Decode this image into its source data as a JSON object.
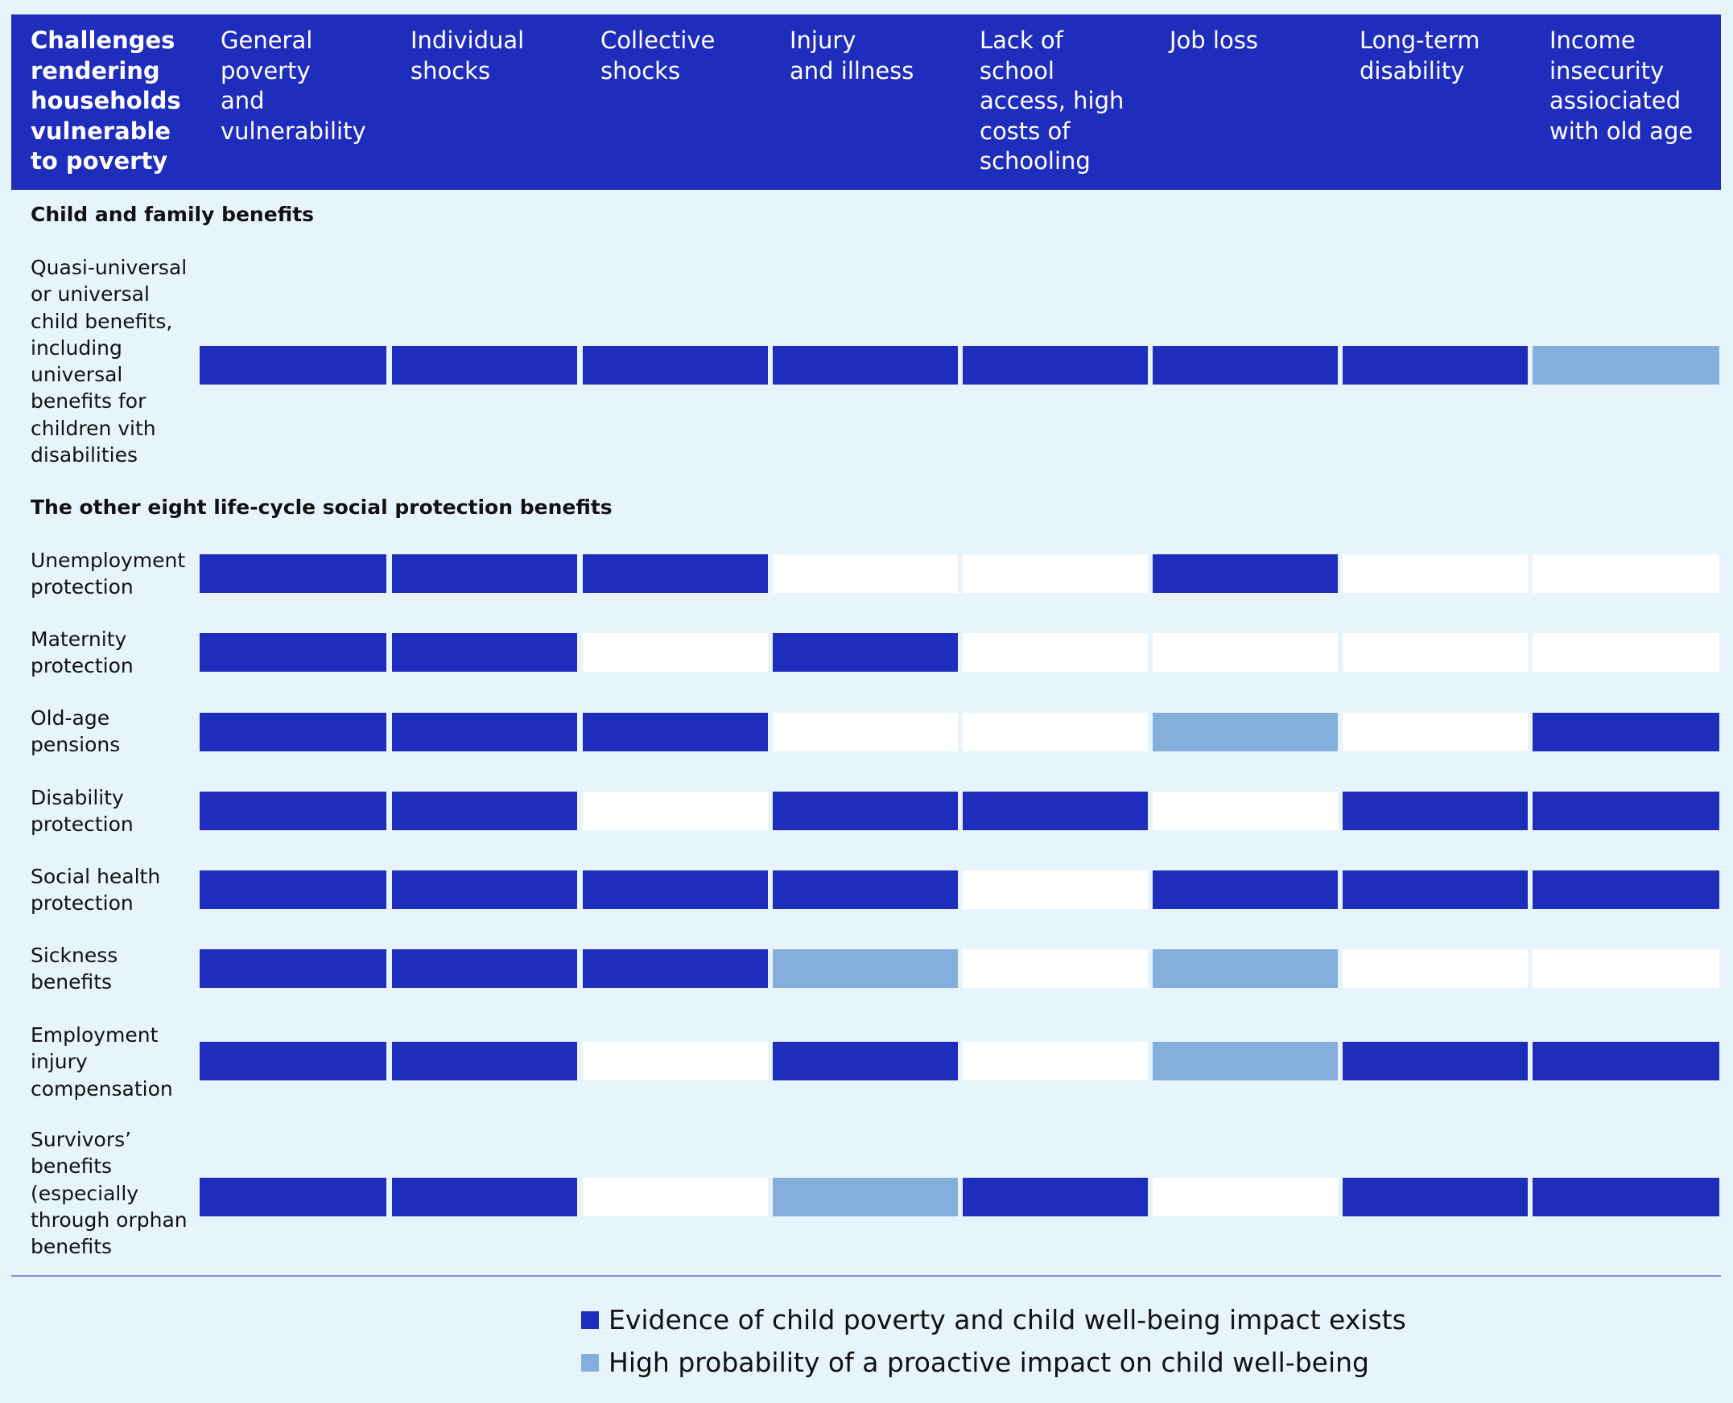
{
  "chart_data": {
    "type": "table",
    "colors": {
      "header_bg": "#1f2dbd",
      "evidence": "#1f2dbd",
      "probable": "#84aedb",
      "none": "#ffffff",
      "background": "#e8f4fc"
    },
    "header": "Challenges rendering households vulnerable to poverty",
    "header_lines": "Challenges\nrendering\nhouseholds\nvulnerable\nto poverty",
    "columns": [
      {
        "label": "General poverty and vulnerability",
        "lines": "General\npoverty\nand\nvulnerability"
      },
      {
        "label": "Individual shocks",
        "lines": "Individual\nshocks"
      },
      {
        "label": "Collective shocks",
        "lines": "Collective\nshocks"
      },
      {
        "label": "Injury and illness",
        "lines": "Injury\nand illness"
      },
      {
        "label": "Lack of school access, high costs of schooling",
        "lines": "Lack of\nschool\naccess, high\ncosts of\nschooling"
      },
      {
        "label": "Job loss",
        "lines": "Job loss"
      },
      {
        "label": "Long-term disability",
        "lines": "Long-term\ndisability"
      },
      {
        "label": "Income insecurity assiociated with old age",
        "lines": "Income\ninsecurity\nassiociated\nwith old age"
      }
    ],
    "sections": [
      {
        "title": "Child and family benefits",
        "rows": [
          {
            "label": "Quasi-universal or universal child benefits, including universal benefits for children vith disabilities",
            "lines": "Quasi-universal\nor universal\nchild benefits,\nincluding\nuniversal\nbenefits for\nchildren vith\ndisabilities",
            "values": [
              "evidence",
              "evidence",
              "evidence",
              "evidence",
              "evidence",
              "evidence",
              "evidence",
              "probable"
            ]
          }
        ]
      },
      {
        "title": "The other eight life-cycle social protection benefits",
        "rows": [
          {
            "label": "Unemployment protection",
            "lines": "Unemployment\nprotection",
            "values": [
              "evidence",
              "evidence",
              "evidence",
              "none",
              "none",
              "evidence",
              "none",
              "none"
            ]
          },
          {
            "label": "Maternity protection",
            "lines": "Maternity\nprotection",
            "values": [
              "evidence",
              "evidence",
              "none",
              "evidence",
              "none",
              "none",
              "none",
              "none"
            ]
          },
          {
            "label": "Old-age pensions",
            "lines": "Old-age\npensions",
            "values": [
              "evidence",
              "evidence",
              "evidence",
              "none",
              "none",
              "probable",
              "none",
              "evidence"
            ]
          },
          {
            "label": "Disability protection",
            "lines": "Disability\nprotection",
            "values": [
              "evidence",
              "evidence",
              "none",
              "evidence",
              "evidence",
              "none",
              "evidence",
              "evidence"
            ]
          },
          {
            "label": "Social health protection",
            "lines": "Social health\nprotection",
            "values": [
              "evidence",
              "evidence",
              "evidence",
              "evidence",
              "none",
              "evidence",
              "evidence",
              "evidence"
            ]
          },
          {
            "label": "Sickness benefits",
            "lines": "Sickness\nbenefits",
            "values": [
              "evidence",
              "evidence",
              "evidence",
              "probable",
              "none",
              "probable",
              "none",
              "none"
            ]
          },
          {
            "label": "Employment injury compensation",
            "lines": "Employment\ninjury\ncompensation",
            "values": [
              "evidence",
              "evidence",
              "none",
              "evidence",
              "none",
              "probable",
              "evidence",
              "evidence"
            ]
          },
          {
            "label": "Survivors’ benefits (especially through orphan benefits",
            "lines": "Survivors’\nbenefits\n(especially\nthrough orphan\nbenefits",
            "values": [
              "evidence",
              "evidence",
              "none",
              "probable",
              "evidence",
              "none",
              "evidence",
              "evidence"
            ]
          }
        ]
      }
    ],
    "legend": [
      {
        "key": "evidence",
        "label": "Evidence of child poverty and child well-being impact exists"
      },
      {
        "key": "probable",
        "label": "High probability of a proactive impact on child well-being"
      }
    ]
  }
}
